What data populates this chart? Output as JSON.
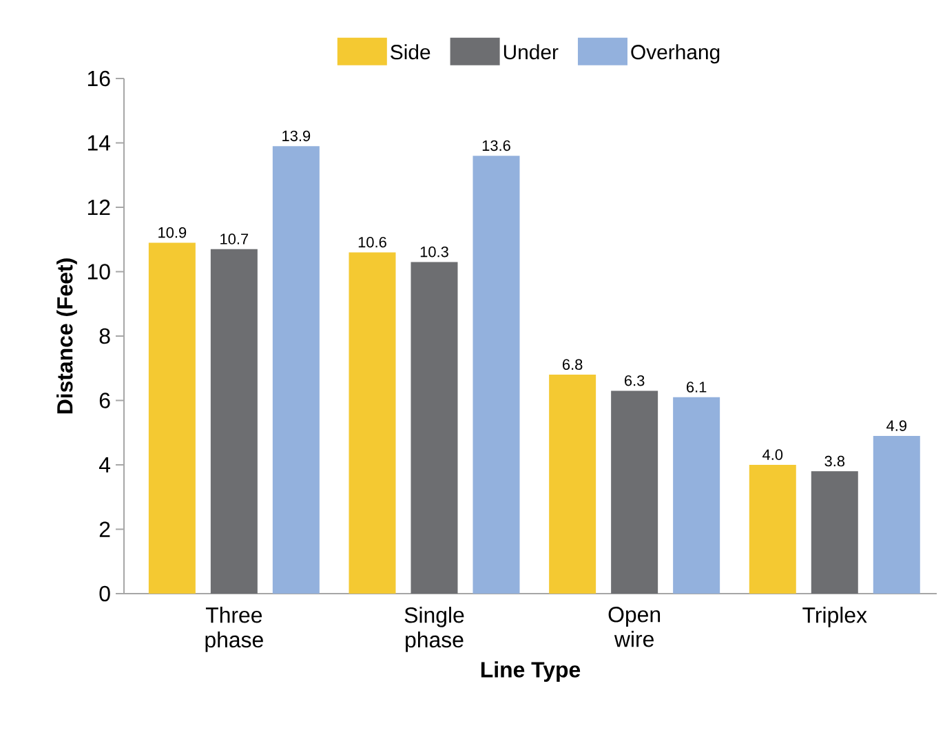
{
  "chart_data": {
    "type": "bar",
    "xlabel": "Line Type",
    "ylabel": "Distance (Feet)",
    "categories": [
      "Three phase",
      "Single phase",
      "Open wire",
      "Triplex"
    ],
    "series": [
      {
        "name": "Side",
        "color": "#f4c932",
        "values": [
          10.9,
          10.6,
          6.8,
          4.0
        ],
        "value_labels": [
          "10.9",
          "10.6",
          "6.8",
          "4.0"
        ]
      },
      {
        "name": "Under",
        "color": "#6d6e71",
        "values": [
          10.7,
          10.3,
          6.3,
          3.8
        ],
        "value_labels": [
          "10.7",
          "10.3",
          "6.3",
          "3.8"
        ]
      },
      {
        "name": "Overhang",
        "color": "#93b1dd",
        "values": [
          13.9,
          13.6,
          6.1,
          4.9
        ],
        "value_labels": [
          "13.9",
          "13.6",
          "6.1",
          "4.9"
        ]
      }
    ],
    "ylim": [
      0,
      16
    ],
    "yticks": [
      0,
      2,
      4,
      6,
      8,
      10,
      12,
      14,
      16
    ],
    "legend": "top",
    "grid": false
  }
}
